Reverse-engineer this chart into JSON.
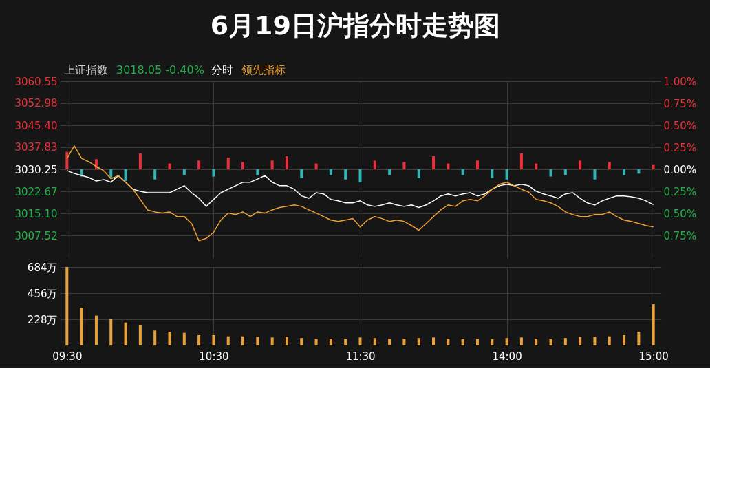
{
  "chart_data": [
    {
      "type": "line",
      "title": "6月19日沪指分时走势图",
      "annotations": [
        "上证指数",
        "3018.05 -0.40%"
      ],
      "legend": "top left",
      "grid": true,
      "tick_labels": "y",
      "categories": [
        null,
        null,
        null,
        null,
        null,
        null,
        null,
        null,
        null,
        null,
        null,
        null,
        null,
        null,
        null,
        null,
        null,
        null,
        null,
        null,
        null,
        null,
        null,
        null,
        null,
        null,
        null,
        null,
        null,
        null,
        null,
        null,
        null,
        null,
        null,
        null,
        null,
        null,
        null,
        null,
        null,
        null,
        null,
        null,
        null,
        null,
        null,
        null,
        null,
        null,
        null,
        null,
        null,
        null,
        null,
        null,
        null,
        null,
        null,
        null,
        null,
        null,
        null,
        null,
        null,
        null,
        null,
        null,
        null,
        null,
        null,
        null,
        null,
        null,
        null,
        null,
        null,
        null,
        null,
        null,
        null
      ],
      "ylim": [
        2999.95,
        3060.55
      ],
      "yticks": [
        3060.55,
        3052.98,
        {
          "value": 3045.4,
          "label": "3045.40"
        },
        3037.83,
        3030.25,
        3022.67,
        {
          "value": 3015.1,
          "label": "3015.10"
        },
        3007.52
      ],
      "y2lim": [
        -1.0,
        1.0
      ],
      "y2ticks": [
        {
          "value": 1.0,
          "label": "1.00%"
        },
        {
          "value": 0.75,
          "label": "0.75%"
        },
        {
          "value": 0.5,
          "label": "0.50%"
        },
        {
          "value": 0.25,
          "label": "0.25%"
        },
        {
          "value": 0,
          "label": "0.00%"
        },
        {
          "value": -0.25,
          "label": "0.25%"
        },
        {
          "value": -0.5,
          "label": "0.50%"
        },
        {
          "value": -0.75,
          "label": "0.75%"
        }
      ],
      "series": [
        {
          "type": "bar",
          "values": [
            6.0,
            null,
            -2.5,
            null,
            3.5,
            null,
            -3.0,
            null,
            -4.0,
            null,
            5.5,
            null,
            -3.5,
            null,
            2.0,
            null,
            -2.0,
            null,
            3.0,
            null,
            -2.5,
            null,
            4.0,
            null,
            2.5,
            null,
            -2.0,
            null,
            3.0,
            null,
            4.5,
            null,
            -3.0,
            null,
            2.0,
            null,
            -2.0,
            null,
            -3.5,
            null,
            -4.5,
            null,
            3.0,
            null,
            -2.0,
            null,
            2.5,
            null,
            -3.0,
            null,
            4.5,
            null,
            2.0,
            null,
            -2.0,
            null,
            3.0,
            null,
            -3.0,
            null,
            -3.5,
            null,
            5.5,
            null,
            2.0,
            null,
            -2.5,
            null,
            -2.0,
            null,
            3.0,
            null,
            -3.5,
            null,
            2.5,
            null,
            -2.0,
            null,
            -1.5,
            null,
            1.5
          ],
          "base": [
            3030.25,
            null,
            3030.25,
            null,
            3030.25,
            null,
            3030.25,
            null,
            3030.25,
            null,
            3030.25,
            null,
            3030.25,
            null,
            3030.25,
            null,
            3030.25,
            null,
            3030.25,
            null,
            3030.25,
            null,
            3030.25,
            null,
            3030.25,
            null,
            3030.25,
            null,
            3030.25,
            null,
            3030.25,
            null,
            3030.25,
            null,
            3030.25,
            null,
            3030.25,
            null,
            3030.25,
            null,
            3030.25,
            null,
            3030.25,
            null,
            3030.25,
            null,
            3030.25,
            null,
            3030.25,
            null,
            3030.25,
            null,
            3030.25,
            null,
            3030.25,
            null,
            3030.25,
            null,
            3030.25,
            null,
            3030.25,
            null,
            3030.25,
            null,
            3030.25,
            null,
            3030.25,
            null,
            3030.25,
            null,
            3030.25,
            null,
            3030.25,
            null,
            3030.25,
            null,
            3030.25,
            null,
            3030.25,
            null,
            3030.25
          ],
          "colors": [
            "#e8313a",
            null,
            "#2fb5b5",
            null,
            "#e8313a",
            null,
            "#2fb5b5",
            null,
            "#2fb5b5",
            null,
            "#e8313a",
            null,
            "#2fb5b5",
            null,
            "#e8313a",
            null,
            "#2fb5b5",
            null,
            "#e8313a",
            null,
            "#2fb5b5",
            null,
            "#e8313a",
            null,
            "#e8313a",
            null,
            "#2fb5b5",
            null,
            "#e8313a",
            null,
            "#e8313a",
            null,
            "#2fb5b5",
            null,
            "#e8313a",
            null,
            "#2fb5b5",
            null,
            "#2fb5b5",
            null,
            "#2fb5b5",
            null,
            "#e8313a",
            null,
            "#2fb5b5",
            null,
            "#e8313a",
            null,
            "#2fb5b5",
            null,
            "#e8313a",
            null,
            "#e8313a",
            null,
            "#2fb5b5",
            null,
            "#e8313a",
            null,
            "#2fb5b5",
            null,
            "#2fb5b5",
            null,
            "#e8313a",
            null,
            "#e8313a",
            null,
            "#2fb5b5",
            null,
            "#2fb5b5",
            null,
            "#e8313a",
            null,
            "#2fb5b5",
            null,
            "#e8313a",
            null,
            "#2fb5b5",
            null,
            "#2fb5b5",
            null,
            "#e8313a"
          ]
        },
        {
          "type": "line",
          "name": "分时",
          "color": "#ffffff",
          "values": [
            3029.8,
            3028.8,
            3028.1,
            3027.4,
            3026.2,
            3026.7,
            3025.8,
            3028.1,
            3025.8,
            3023.4,
            3022.7,
            3022.2,
            3022.2,
            3022.2,
            3022.2,
            3023.4,
            3024.6,
            3022.2,
            3020.3,
            3017.5,
            3019.9,
            3022.2,
            3023.4,
            3024.6,
            3025.8,
            3025.8,
            3026.9,
            3028.1,
            3025.8,
            3024.6,
            3024.6,
            3023.4,
            3021.1,
            3020.3,
            3022.2,
            3021.8,
            3019.9,
            3019.4,
            3018.7,
            3018.7,
            3019.4,
            3018.0,
            3017.5,
            3018.0,
            3018.7,
            3018.0,
            3017.5,
            3018.0,
            3017.1,
            3018.0,
            3019.4,
            3021.1,
            3021.8,
            3021.1,
            3021.8,
            3022.2,
            3021.1,
            3021.8,
            3023.4,
            3024.6,
            3025.1,
            3024.6,
            3025.1,
            3024.6,
            3022.7,
            3021.8,
            3021.1,
            3020.3,
            3021.8,
            3022.2,
            3020.3,
            3018.7,
            3018.0,
            3019.4,
            3020.3,
            3021.1,
            3021.1,
            3020.8,
            3020.3,
            3019.4,
            3018.1
          ]
        },
        {
          "type": "line",
          "name": "领先指标",
          "color": "#f0a030",
          "values": [
            3034.0,
            3038.3,
            3034.0,
            3032.8,
            3031.2,
            3029.8,
            3027.0,
            3028.1,
            3025.8,
            3023.4,
            3019.9,
            3016.3,
            3015.6,
            3015.2,
            3015.6,
            3014.0,
            3014.0,
            3011.6,
            3005.7,
            3006.5,
            3008.6,
            3012.8,
            3015.2,
            3014.7,
            3015.6,
            3014.0,
            3015.6,
            3015.2,
            3016.3,
            3017.1,
            3017.5,
            3018.0,
            3017.5,
            3016.3,
            3015.2,
            3014.0,
            3012.8,
            3012.3,
            3012.8,
            3013.3,
            3010.4,
            3012.8,
            3014.0,
            3013.3,
            3012.3,
            3012.8,
            3012.3,
            3010.9,
            3009.3,
            3011.6,
            3014.0,
            3016.3,
            3018.0,
            3017.5,
            3019.4,
            3019.9,
            3019.4,
            3021.1,
            3023.4,
            3025.1,
            3025.8,
            3024.6,
            3023.4,
            3022.4,
            3019.9,
            3019.4,
            3018.7,
            3017.5,
            3015.6,
            3014.7,
            3014.0,
            3014.0,
            3014.7,
            3014.7,
            3015.6,
            3014.0,
            3012.8,
            3012.3,
            3011.6,
            3010.9,
            3010.4
          ]
        }
      ]
    },
    {
      "type": "bar",
      "grid": true,
      "color": "#e8a33d",
      "categories": [
        "09:30",
        null,
        null,
        null,
        null,
        null,
        null,
        null,
        null,
        null,
        null,
        null,
        null,
        null,
        null,
        null,
        null,
        null,
        null,
        null,
        "10:30",
        null,
        null,
        null,
        null,
        null,
        null,
        null,
        null,
        null,
        null,
        null,
        null,
        null,
        null,
        null,
        null,
        null,
        null,
        null,
        "11:30",
        null,
        null,
        null,
        null,
        null,
        null,
        null,
        null,
        null,
        null,
        null,
        null,
        null,
        null,
        null,
        null,
        null,
        null,
        null,
        "14:00",
        null,
        null,
        null,
        null,
        null,
        null,
        null,
        null,
        null,
        null,
        null,
        null,
        null,
        null,
        null,
        null,
        null,
        null,
        null,
        "15:00"
      ],
      "ylim": [
        0,
        684
      ],
      "yticks": [
        {
          "value": 228,
          "label": "228万"
        },
        {
          "value": 456,
          "label": "456万"
        },
        {
          "value": 684,
          "label": "684万"
        }
      ],
      "values": [
        684,
        null,
        330,
        null,
        260,
        null,
        230,
        null,
        200,
        null,
        180,
        null,
        130,
        null,
        120,
        null,
        110,
        null,
        90,
        null,
        90,
        null,
        80,
        null,
        80,
        null,
        75,
        null,
        70,
        null,
        75,
        null,
        65,
        null,
        60,
        null,
        60,
        null,
        55,
        null,
        70,
        null,
        65,
        null,
        60,
        null,
        60,
        null,
        65,
        null,
        70,
        null,
        60,
        null,
        55,
        null,
        55,
        null,
        55,
        null,
        65,
        null,
        70,
        null,
        60,
        null,
        60,
        null,
        65,
        null,
        75,
        null,
        75,
        null,
        80,
        null,
        90,
        null,
        120,
        null,
        360
      ]
    }
  ]
}
